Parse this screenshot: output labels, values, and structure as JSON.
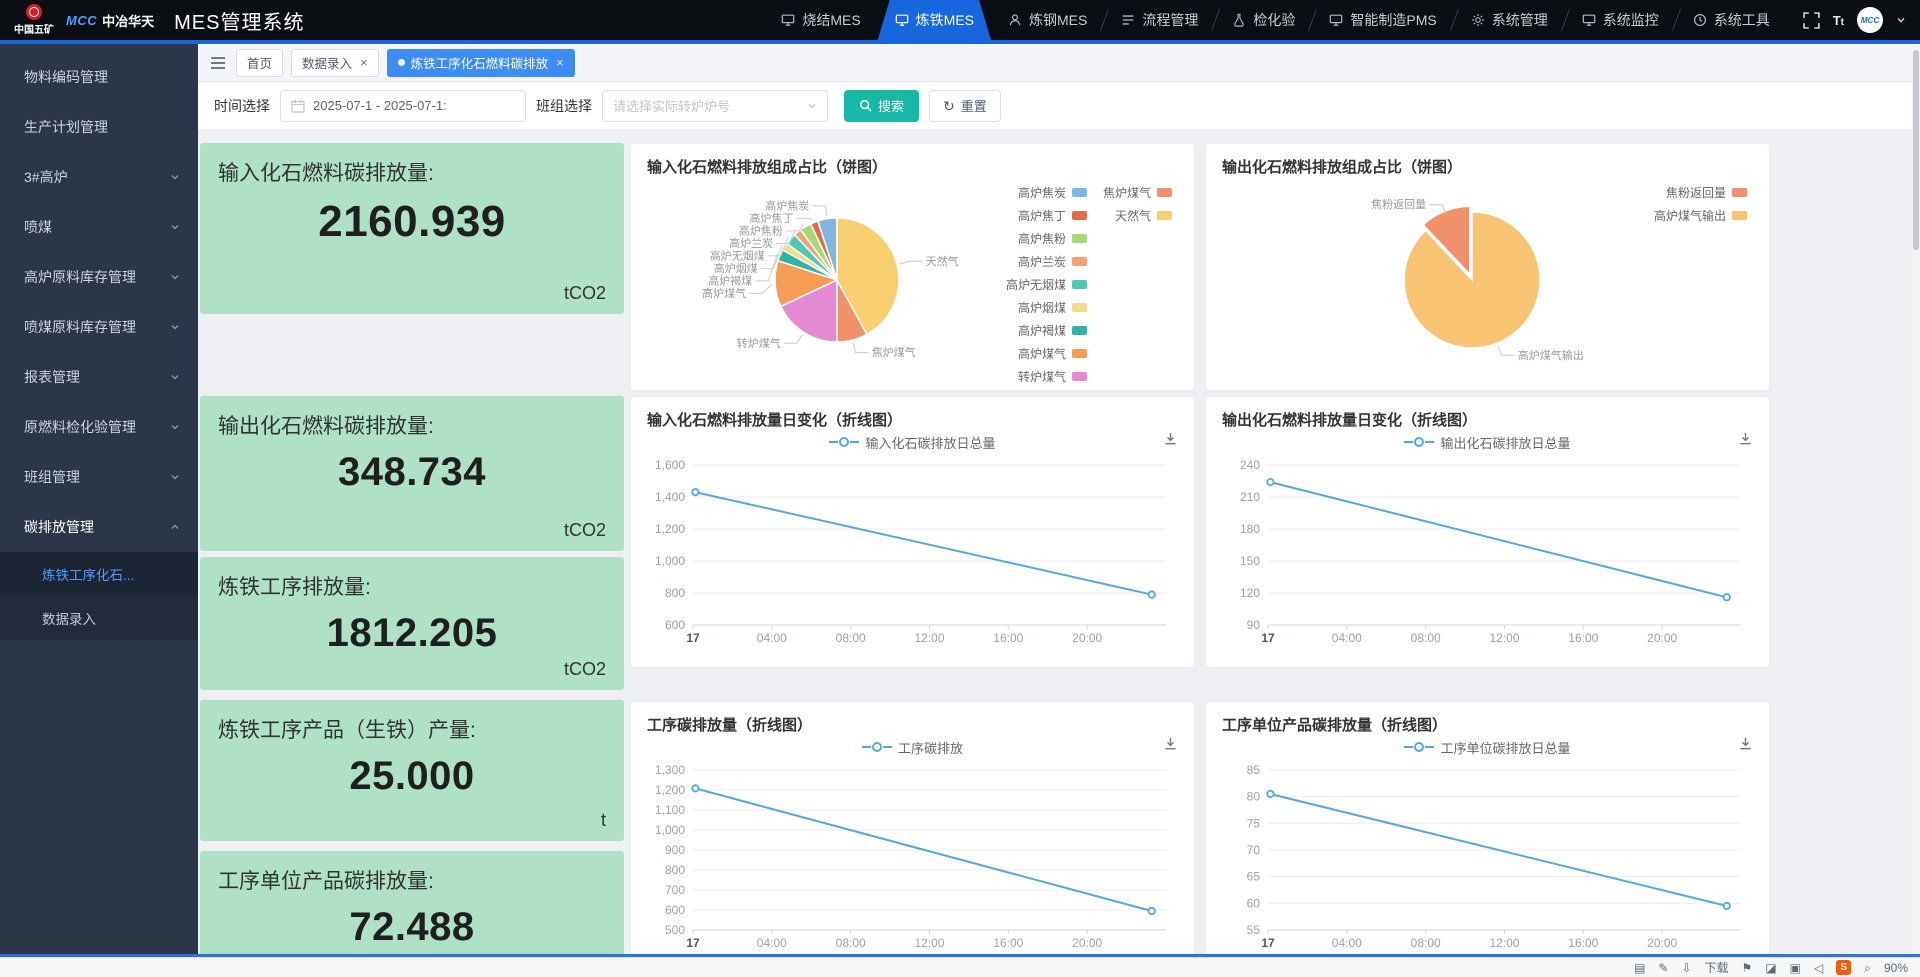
{
  "app": {
    "brand_org": "中国五矿",
    "brand_company": "中冶华天",
    "brand_logo": "MCC",
    "title": "MES管理系统"
  },
  "nav": {
    "tabs": [
      {
        "label": "烧结MES",
        "icon": "monitor-icon",
        "active": false
      },
      {
        "label": "炼铁MES",
        "icon": "monitor-icon",
        "active": true
      },
      {
        "label": "炼钢MES",
        "icon": "person-icon",
        "active": false
      },
      {
        "label": "流程管理",
        "icon": "flow-icon",
        "active": false
      },
      {
        "label": "检化验",
        "icon": "flask-icon",
        "active": false
      },
      {
        "label": "智能制造PMS",
        "icon": "monitor-icon",
        "active": false
      },
      {
        "label": "系统管理",
        "icon": "gear-icon",
        "active": false
      },
      {
        "label": "系统监控",
        "icon": "monitor-icon",
        "active": false
      },
      {
        "label": "系统工具",
        "icon": "clock-icon",
        "active": false
      }
    ]
  },
  "sidebar": {
    "items": [
      {
        "label": "物料编码管理",
        "type": "leaf"
      },
      {
        "label": "生产计划管理",
        "type": "leaf"
      },
      {
        "label": "3#高炉",
        "type": "group"
      },
      {
        "label": "喷煤",
        "type": "group"
      },
      {
        "label": "高炉原料库存管理",
        "type": "group"
      },
      {
        "label": "喷煤原料库存管理",
        "type": "group"
      },
      {
        "label": "报表管理",
        "type": "group"
      },
      {
        "label": "原燃料检化验管理",
        "type": "group"
      },
      {
        "label": "班组管理",
        "type": "group"
      },
      {
        "label": "碳排放管理",
        "type": "group",
        "expanded": true,
        "children": [
          {
            "label": "炼铁工序化石...",
            "active": true
          },
          {
            "label": "数据录入",
            "active": false
          }
        ]
      }
    ]
  },
  "tabstrip": {
    "tabs": [
      {
        "label": "首页",
        "active": false,
        "closable": false
      },
      {
        "label": "数据录入",
        "active": false,
        "closable": true
      },
      {
        "label": "炼铁工序化石燃料碳排放",
        "active": true,
        "closable": true
      }
    ]
  },
  "filters": {
    "time_label": "时间选择",
    "date_value": "2025-07-1 - 2025-07-1:",
    "group_label": "班组选择",
    "group_placeholder": "请选择实际转炉炉号",
    "search_label": "搜索",
    "reset_label": "重置"
  },
  "stats": [
    {
      "label": "输入化石燃料碳排放量:",
      "value": "2160.939",
      "unit": "tCO2"
    },
    {
      "label": "输出化石燃料碳排放量:",
      "value": "348.734",
      "unit": "tCO2"
    },
    {
      "label": "炼铁工序排放量:",
      "value": "1812.205",
      "unit": "tCO2"
    },
    {
      "label": "炼铁工序产品（生铁）产量:",
      "value": "25.000",
      "unit": "t"
    },
    {
      "label": "工序单位产品碳排放量:",
      "value": "72.488",
      "unit": ""
    }
  ],
  "chart_data": [
    {
      "type": "pie",
      "title": "输入化石燃料排放组成占比（饼图）",
      "slices": [
        {
          "name": "高炉焦炭",
          "value": 5,
          "color": "#7eb6e4"
        },
        {
          "name": "高炉焦丁",
          "value": 2,
          "color": "#e26d45"
        },
        {
          "name": "高炉焦粉",
          "value": 3,
          "color": "#a3d977"
        },
        {
          "name": "高炉兰炭",
          "value": 2,
          "color": "#f2a178"
        },
        {
          "name": "高炉无烟煤",
          "value": 3,
          "color": "#4fc8b0"
        },
        {
          "name": "高炉烟煤",
          "value": 2,
          "color": "#f1dd85"
        },
        {
          "name": "高炉褐煤",
          "value": 3,
          "color": "#2fb3a2"
        },
        {
          "name": "高炉煤气",
          "value": 12,
          "color": "#f69c55"
        },
        {
          "name": "转炉煤气",
          "value": 18,
          "color": "#e58ad2"
        },
        {
          "name": "焦炉煤气",
          "value": 8,
          "color": "#f0916c"
        },
        {
          "name": "天然气",
          "value": 42,
          "color": "#f8cf70"
        }
      ],
      "legend_columns": [
        [
          "高炉焦炭",
          "高炉焦丁",
          "高炉焦粉",
          "高炉兰炭",
          "高炉无烟煤",
          "高炉烟煤",
          "高炉褐煤",
          "高炉煤气",
          "转炉煤气"
        ],
        [
          "焦炉煤气",
          "天然气"
        ]
      ],
      "legend_position": "right"
    },
    {
      "type": "pie",
      "title": "输出化石燃料排放组成占比（饼图）",
      "slices": [
        {
          "name": "焦粉返回量",
          "value": 12,
          "color": "#f0916c",
          "offset": true
        },
        {
          "name": "高炉煤气输出",
          "value": 88,
          "color": "#f8c473"
        }
      ],
      "legend_columns": [
        [
          "焦粉返回量",
          "高炉煤气输出"
        ]
      ],
      "legend_position": "right"
    },
    {
      "type": "line",
      "title": "输入化石燃料排放量日变化（折线图）",
      "legend": "输入化石碳排放日总量",
      "line_color": "#54a8de",
      "x_ticks": [
        "17",
        "04:00",
        "08:00",
        "12:00",
        "16:00",
        "20:00"
      ],
      "y_ticks": [
        600,
        800,
        1000,
        1200,
        1400,
        1600
      ],
      "ylim": [
        600,
        1600
      ],
      "grid": true,
      "points": [
        {
          "x": 0.005,
          "y": 1430
        },
        {
          "x": 0.97,
          "y": 790
        }
      ]
    },
    {
      "type": "line",
      "title": "输出化石燃料排放量日变化（折线图）",
      "legend": "输出化石碳排放日总量",
      "line_color": "#54a8de",
      "x_ticks": [
        "17",
        "04:00",
        "08:00",
        "12:00",
        "16:00",
        "20:00"
      ],
      "y_ticks": [
        90,
        120,
        150,
        180,
        210,
        240
      ],
      "ylim": [
        90,
        240
      ],
      "grid": true,
      "points": [
        {
          "x": 0.005,
          "y": 224
        },
        {
          "x": 0.97,
          "y": 116
        }
      ]
    },
    {
      "type": "line",
      "title": "工序碳排放量（折线图）",
      "legend": "工序碳排放",
      "line_color": "#54a8de",
      "x_ticks": [
        "17",
        "04:00",
        "08:00",
        "12:00",
        "16:00",
        "20:00"
      ],
      "y_ticks": [
        500,
        600,
        700,
        800,
        900,
        1000,
        1100,
        1200,
        1300
      ],
      "ylim": [
        500,
        1300
      ],
      "grid": true,
      "points": [
        {
          "x": 0.005,
          "y": 1208
        },
        {
          "x": 0.97,
          "y": 595
        }
      ]
    },
    {
      "type": "line",
      "title": "工序单位产品碳排放量（折线图）",
      "legend": "工序单位碳排放日总量",
      "line_color": "#54a8de",
      "x_ticks": [
        "17",
        "04:00",
        "08:00",
        "12:00",
        "16:00",
        "20:00"
      ],
      "y_ticks": [
        55,
        60,
        65,
        70,
        75,
        80,
        85
      ],
      "ylim": [
        55,
        85
      ],
      "grid": true,
      "points": [
        {
          "x": 0.005,
          "y": 80.5
        },
        {
          "x": 0.97,
          "y": 59.5
        }
      ]
    }
  ],
  "statusbar": {
    "items": [
      {
        "type": "icon",
        "name": "panel-icon",
        "glyph": "▤"
      },
      {
        "type": "icon",
        "name": "pen-icon",
        "glyph": "✎"
      },
      {
        "type": "icon",
        "name": "download-icon",
        "glyph": "⇩"
      },
      {
        "type": "text",
        "name": "download-label",
        "text": "下载"
      },
      {
        "type": "icon",
        "name": "flag-icon",
        "glyph": "⚑"
      },
      {
        "type": "icon",
        "name": "eraser-icon",
        "glyph": "◪"
      },
      {
        "type": "icon",
        "name": "doc-icon",
        "glyph": "▣"
      },
      {
        "type": "icon",
        "name": "speaker-icon",
        "glyph": "◁"
      },
      {
        "type": "badge",
        "name": "ime-badge",
        "text": "S"
      },
      {
        "type": "icon",
        "name": "zoom-icon",
        "glyph": "⌕"
      },
      {
        "type": "text",
        "name": "zoom-level",
        "text": "90%"
      }
    ]
  }
}
